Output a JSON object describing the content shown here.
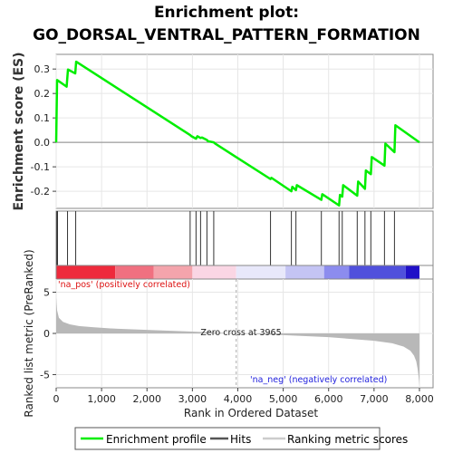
{
  "chart_data": {
    "type": "line",
    "title_line1": "Enrichment plot:",
    "title_line2": "GO_DORSAL_VENTRAL_PATTERN_FORMATION",
    "top_panel": {
      "ylabel": "Enrichment score (ES)",
      "ylim": [
        -0.27,
        0.36
      ],
      "yticks": [
        -0.2,
        -0.1,
        0.0,
        0.1,
        0.2,
        0.3
      ],
      "ytick_labels": [
        "-0.2",
        "-0.1",
        "0.0",
        "0.1",
        "0.2",
        "0.3"
      ],
      "series": [
        {
          "name": "Enrichment profile",
          "color": "#00ee00",
          "x": [
            0,
            20,
            230,
            260,
            420,
            440,
            2950,
            2980,
            3080,
            3110,
            3180,
            3210,
            3320,
            3340,
            3470,
            3500,
            4720,
            4740,
            5180,
            5200,
            5280,
            5300,
            5840,
            5860,
            6230,
            6250,
            6300,
            6320,
            6630,
            6650,
            6800,
            6820,
            6930,
            6950,
            7230,
            7250,
            7450,
            7470,
            8000
          ],
          "y": [
            0.0,
            0.255,
            0.228,
            0.298,
            0.282,
            0.33,
            0.03,
            0.025,
            0.015,
            0.025,
            0.018,
            0.02,
            0.01,
            0.005,
            0.0,
            -0.005,
            -0.15,
            -0.145,
            -0.2,
            -0.182,
            -0.195,
            -0.175,
            -0.235,
            -0.212,
            -0.258,
            -0.215,
            -0.222,
            -0.175,
            -0.218,
            -0.16,
            -0.19,
            -0.115,
            -0.13,
            -0.06,
            -0.095,
            -0.005,
            -0.04,
            0.07,
            0.0
          ]
        }
      ]
    },
    "hits_panel": {
      "hit_positions": [
        15,
        30,
        250,
        430,
        2950,
        3080,
        3180,
        3320,
        3470,
        4720,
        5180,
        5280,
        5840,
        6230,
        6300,
        6630,
        6800,
        6930,
        7230,
        7450
      ]
    },
    "colorbar": {
      "segments": [
        {
          "from": 0,
          "to": 1300,
          "color": "#ee2a3c"
        },
        {
          "from": 1300,
          "to": 2150,
          "color": "#f07080"
        },
        {
          "from": 2150,
          "to": 3000,
          "color": "#f4a4ac"
        },
        {
          "from": 3000,
          "to": 3965,
          "color": "#fad6e4"
        },
        {
          "from": 3965,
          "to": 5050,
          "color": "#e8e8fa"
        },
        {
          "from": 5050,
          "to": 5900,
          "color": "#c4c4f4"
        },
        {
          "from": 5900,
          "to": 6450,
          "color": "#8c8cee"
        },
        {
          "from": 6450,
          "to": 7700,
          "color": "#5050dc"
        },
        {
          "from": 7700,
          "to": 8000,
          "color": "#2010c8"
        }
      ]
    },
    "bottom_panel": {
      "ylabel": "Ranked list metric (PreRanked)",
      "xlabel": "Rank in Ordered Dataset",
      "ylim": [
        -6.6,
        6.6
      ],
      "yticks": [
        -5,
        0,
        5
      ],
      "ytick_labels": [
        "-5",
        "0",
        "5"
      ],
      "xlim": [
        0,
        8300
      ],
      "xticks": [
        0,
        1000,
        2000,
        3000,
        4000,
        5000,
        6000,
        7000,
        8000
      ],
      "xtick_labels": [
        "0",
        "1,000",
        "2,000",
        "3,000",
        "4,000",
        "5,000",
        "6,000",
        "7,000",
        "8,000"
      ],
      "metric_profile": {
        "x": [
          0,
          20,
          60,
          150,
          300,
          500,
          800,
          1200,
          2000,
          3000,
          3965,
          5000,
          6000,
          7000,
          7400,
          7650,
          7800,
          7880,
          7930,
          7960,
          7980,
          8000
        ],
        "y": [
          4.4,
          2.8,
          1.9,
          1.4,
          1.1,
          0.9,
          0.75,
          0.6,
          0.42,
          0.22,
          0.0,
          -0.2,
          -0.45,
          -0.9,
          -1.2,
          -1.6,
          -2.1,
          -2.7,
          -3.4,
          -4.3,
          -5.2,
          -6.3
        ]
      },
      "zero_cross_label": "Zero cross at 3965",
      "zero_cross": 3965,
      "pos_label": "'na_pos' (positively correlated)",
      "neg_label": "'na_neg' (negatively correlated)"
    },
    "legend": {
      "items": [
        "Enrichment profile",
        "Hits",
        "Ranking metric scores"
      ],
      "colors": [
        "#00ee00",
        "#555555",
        "#cccccc"
      ]
    },
    "grid": true
  }
}
